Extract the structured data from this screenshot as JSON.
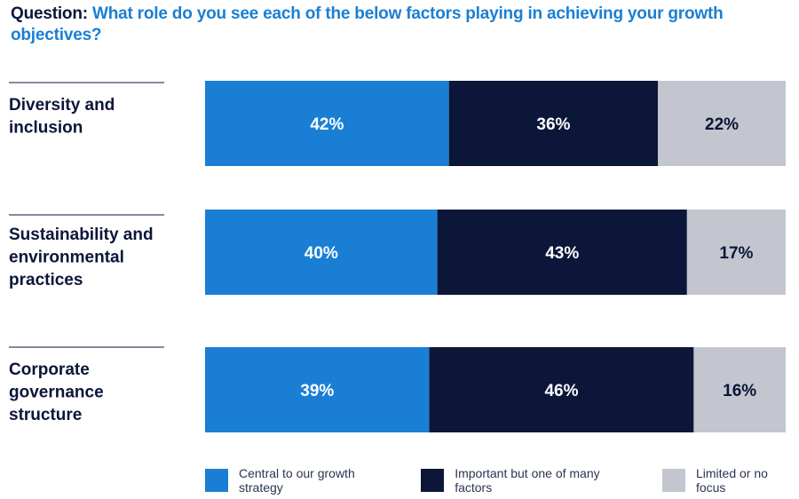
{
  "question": {
    "label": "Question:",
    "text": "What role do you see each of the below factors playing in achieving your growth objectives?"
  },
  "chart_data": {
    "type": "bar",
    "orientation": "horizontal",
    "stacked": true,
    "title": "What role do you see each of the below factors playing in achieving your growth objectives?",
    "categories": [
      [
        "Diversity and",
        "inclusion"
      ],
      [
        "Sustainability and",
        "environmental",
        "practices"
      ],
      [
        "Corporate",
        "governance",
        "structure"
      ]
    ],
    "series": [
      {
        "name": "Central to our growth strategy",
        "color": "#1a7fd4",
        "label_color": "#ffffff",
        "values": [
          42,
          40,
          39
        ]
      },
      {
        "name": "Important but one of many factors",
        "color": "#0b1638",
        "label_color": "#ffffff",
        "values": [
          36,
          43,
          46
        ]
      },
      {
        "name": "Limited or no focus",
        "color": "#c3c6cf",
        "label_color": "#0b1638",
        "values": [
          22,
          17,
          16
        ]
      }
    ],
    "value_suffix": "%",
    "xlim": [
      0,
      100
    ],
    "legend_position": "bottom"
  }
}
